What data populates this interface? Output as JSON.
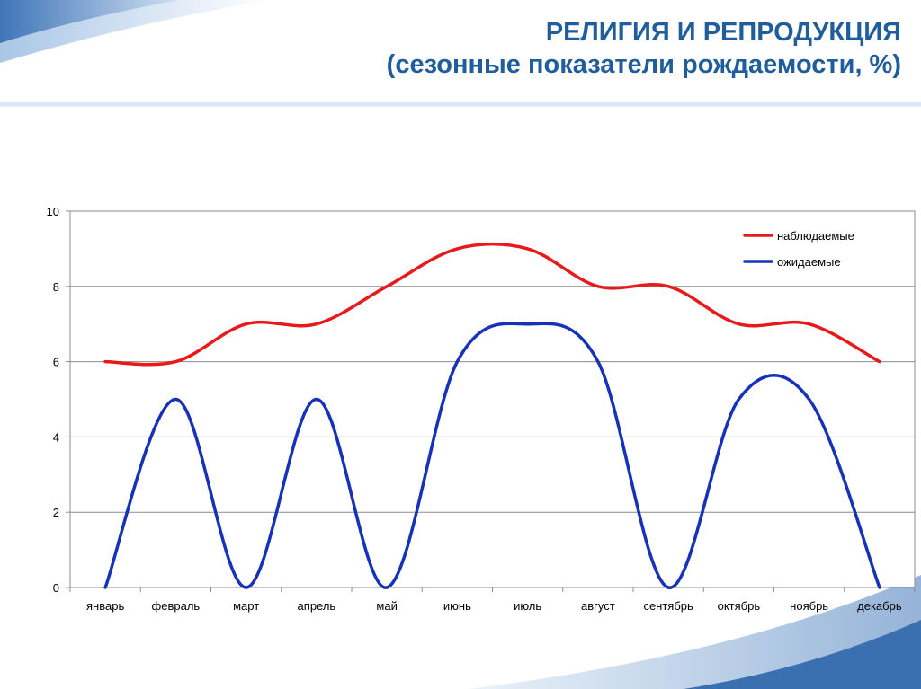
{
  "header": {
    "title": "РЕЛИГИЯ И РЕПРОДУКЦИЯ",
    "subtitle": "(сезонные показатели рождаемости, %)"
  },
  "colors": {
    "brand_blue": "#1f5d9c",
    "observed": "#e8191a",
    "expected": "#1532b8"
  },
  "chart_data": {
    "type": "line",
    "categories": [
      "январь",
      "февраль",
      "март",
      "апрель",
      "май",
      "июнь",
      "июль",
      "август",
      "сентябрь",
      "октябрь",
      "ноябрь",
      "декабрь"
    ],
    "series": [
      {
        "name": "наблюдаемые",
        "values": [
          6,
          6,
          7,
          7,
          8,
          9,
          9,
          8,
          8,
          7,
          7,
          6
        ],
        "color": "#e8191a"
      },
      {
        "name": "ожидаемые",
        "values": [
          0,
          5,
          0,
          5,
          0,
          6,
          7,
          6,
          0,
          5,
          5,
          0
        ],
        "color": "#1532b8"
      }
    ],
    "yticks": [
      0,
      2,
      4,
      6,
      8,
      10
    ],
    "ylim": [
      0,
      10
    ],
    "title": "",
    "xlabel": "",
    "ylabel": "",
    "grid": true,
    "legend": "top-right",
    "smooth": true
  }
}
